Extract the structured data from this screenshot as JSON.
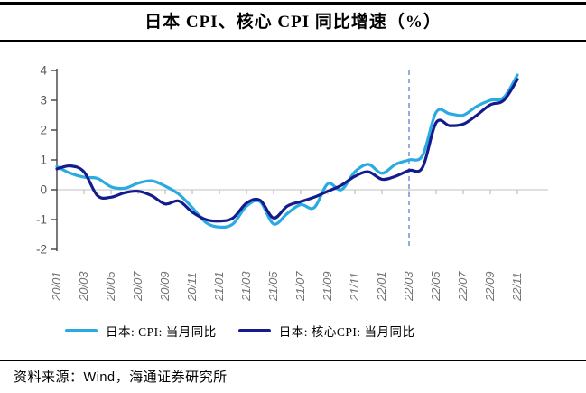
{
  "page": {
    "title": "日本 CPI、核心 CPI 同比增速（%）",
    "source": {
      "prefix": "资料来源：",
      "brand": "Wind",
      "suffix": "，海通证券研究所"
    }
  },
  "chart_data": {
    "type": "line",
    "title": "日本 CPI、核心 CPI 同比增速（%）",
    "x": [
      "20/01",
      "20/02",
      "20/03",
      "20/04",
      "20/05",
      "20/06",
      "20/07",
      "20/08",
      "20/09",
      "20/10",
      "20/11",
      "20/12",
      "21/01",
      "21/02",
      "21/03",
      "21/04",
      "21/05",
      "21/06",
      "21/07",
      "21/08",
      "21/09",
      "21/10",
      "21/11",
      "21/12",
      "22/01",
      "22/02",
      "22/03",
      "22/04",
      "22/05",
      "22/06",
      "22/07",
      "22/08",
      "22/09",
      "22/10",
      "22/11"
    ],
    "x_tick_every": 2,
    "x_tick_labels": [
      "20/01",
      "20/03",
      "20/05",
      "20/07",
      "20/09",
      "20/11",
      "21/01",
      "21/03",
      "21/05",
      "21/07",
      "21/09",
      "21/11",
      "22/01",
      "22/03",
      "22/05",
      "22/07",
      "22/09",
      "22/11"
    ],
    "series": [
      {
        "name": "日本: CPI: 当月同比",
        "color": "#29ABE2",
        "values": [
          0.78,
          0.55,
          0.42,
          0.38,
          0.1,
          0.05,
          0.22,
          0.3,
          0.12,
          -0.15,
          -0.6,
          -1.1,
          -1.25,
          -1.15,
          -0.55,
          -0.4,
          -1.15,
          -0.8,
          -0.5,
          -0.6,
          0.2,
          0.0,
          0.6,
          0.85,
          0.55,
          0.85,
          1.0,
          1.15,
          2.6,
          2.55,
          2.5,
          2.8,
          3.0,
          3.1,
          3.85
        ]
      },
      {
        "name": "日本: 核心CPI: 当月同比",
        "color": "#141B8C",
        "values": [
          0.7,
          0.8,
          0.6,
          -0.2,
          -0.25,
          -0.1,
          -0.05,
          -0.2,
          -0.48,
          -0.38,
          -0.75,
          -1.0,
          -1.05,
          -0.95,
          -0.45,
          -0.35,
          -0.95,
          -0.55,
          -0.4,
          -0.25,
          -0.05,
          0.15,
          0.45,
          0.6,
          0.35,
          0.45,
          0.65,
          0.75,
          2.25,
          2.15,
          2.2,
          2.5,
          2.85,
          3.0,
          3.7
        ]
      }
    ],
    "ylim": [
      -2,
      4
    ],
    "y_ticks": [
      4,
      3,
      2,
      1,
      0,
      -1,
      -2
    ],
    "grid": "horizontal zero line only",
    "legend_position": "bottom",
    "annotations": [
      {
        "type": "vline",
        "x": "22/03",
        "style": "dashed",
        "color": "#7E97D8"
      }
    ],
    "axis_colors": {
      "y_axis": "#404040",
      "zero_gridline": "#D6D6D6",
      "x_ticks": "#BFBFBF"
    }
  }
}
